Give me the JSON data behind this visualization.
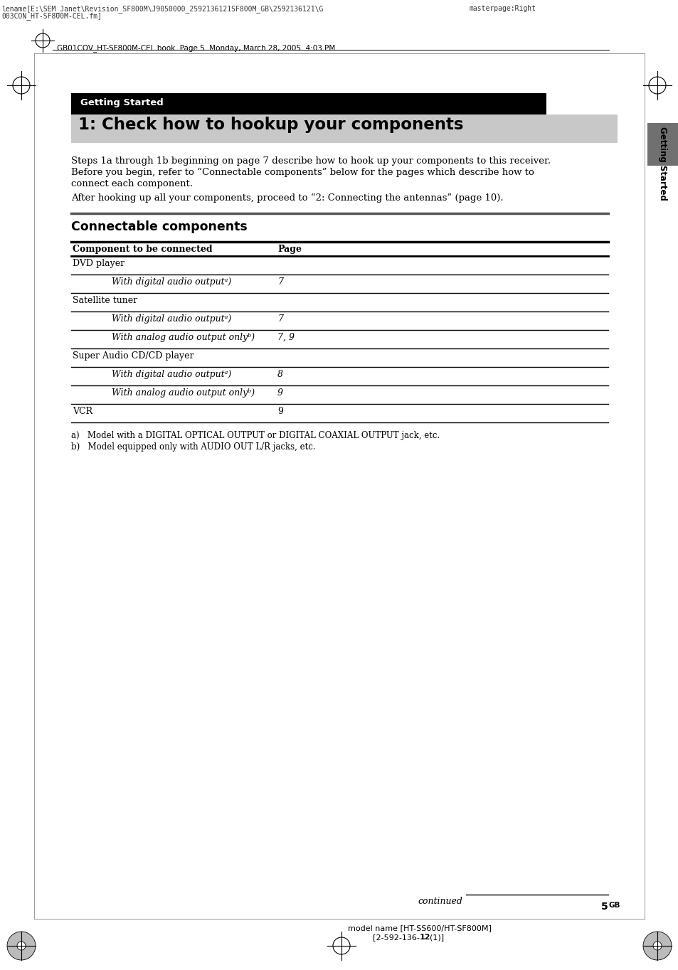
{
  "bg_color": "#ffffff",
  "header_filename": "lename[E:\\SEM_Janet\\Revision_SF800M\\J9050000_2592136121SF800M_GB\\2592136121\\G",
  "header_filename2": "003CON_HT-SF800M-CEL.fm]",
  "header_right": "masterpage:Right",
  "header_book": "GB01COV_HT-SF800M-CEL.book  Page 5  Monday, March 28, 2005  4:03 PM",
  "section_label": "Getting Started",
  "section_label_color": "#ffffff",
  "section_bg_color": "#000000",
  "title": "1: Check how to hookup your components",
  "title_bg_color": "#c8c8c8",
  "sidebar_text": "Getting Started",
  "sidebar_bg": "#707070",
  "body_para1": "Steps 1a through 1b beginning on page 7 describe how to hook up your components to this receiver.",
  "body_para2": "Before you begin, refer to “Connectable components” below for the pages which describe how to",
  "body_para3": "connect each component.",
  "body_para4": "After hooking up all your components, proceed to “2: Connecting the antennas” (page 10).",
  "connectable_title": "Connectable components",
  "table_header_col1": "Component to be connected",
  "table_header_col2": "Page",
  "footnote_a": "a)   Model with a DIGITAL OPTICAL OUTPUT or DIGITAL COAXIAL OUTPUT jack, etc.",
  "footnote_b": "b)   Model equipped only with AUDIO OUT L/R jacks, etc.",
  "footer_continued": "continued",
  "footer_page": "5",
  "footer_page_sup": "GB",
  "footer_model1": "model name [HT-SS600/HT-SF800M]",
  "footer_model2": "[2-592-136-",
  "footer_model2b": "12",
  "footer_model2c": "(1)]"
}
